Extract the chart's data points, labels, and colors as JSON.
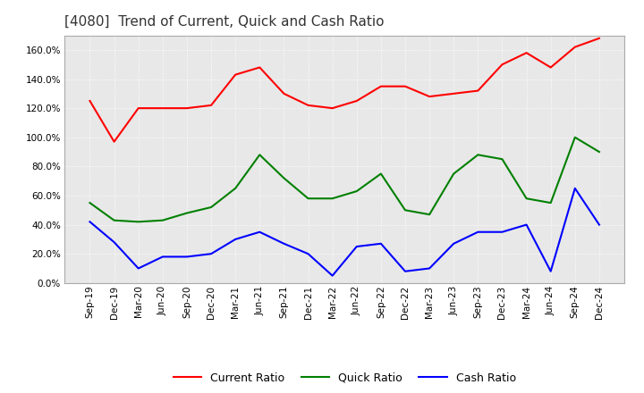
{
  "title": "[4080]  Trend of Current, Quick and Cash Ratio",
  "x_labels": [
    "Sep-19",
    "Dec-19",
    "Mar-20",
    "Jun-20",
    "Sep-20",
    "Dec-20",
    "Mar-21",
    "Jun-21",
    "Sep-21",
    "Dec-21",
    "Mar-22",
    "Jun-22",
    "Sep-22",
    "Dec-22",
    "Mar-23",
    "Jun-23",
    "Sep-23",
    "Dec-23",
    "Mar-24",
    "Jun-24",
    "Sep-24",
    "Dec-24"
  ],
  "current_ratio": [
    125,
    97,
    120,
    120,
    120,
    122,
    143,
    148,
    130,
    122,
    120,
    125,
    135,
    135,
    128,
    130,
    132,
    150,
    158,
    148,
    162,
    168
  ],
  "quick_ratio": [
    55,
    43,
    42,
    43,
    48,
    52,
    65,
    88,
    72,
    58,
    58,
    63,
    75,
    50,
    47,
    75,
    88,
    85,
    58,
    55,
    100,
    90
  ],
  "cash_ratio": [
    42,
    28,
    10,
    18,
    18,
    20,
    30,
    35,
    27,
    20,
    5,
    25,
    27,
    8,
    10,
    27,
    35,
    35,
    40,
    8,
    65,
    40
  ],
  "current_color": "#ff0000",
  "quick_color": "#008000",
  "cash_color": "#0000ff",
  "ylim": [
    0,
    170
  ],
  "yticks": [
    0,
    20,
    40,
    60,
    80,
    100,
    120,
    140,
    160
  ],
  "plot_bg_color": "#e8e8e8",
  "fig_bg_color": "#ffffff",
  "grid_color": "#ffffff",
  "title_fontsize": 11,
  "tick_fontsize": 7.5,
  "legend_fontsize": 9
}
